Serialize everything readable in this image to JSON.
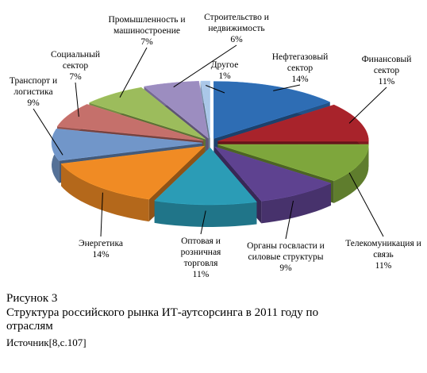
{
  "chart_data": {
    "type": "pie",
    "figure_label": "Рисунок  3",
    "title": "Структура российского рынка ИТ-аутсорсинга в 2011 году по отраслям",
    "source": "Источник[8,с.107]",
    "categories": [
      "Нефтегазовый сектор",
      "Финансовый сектор",
      "Телекомуникация и связь",
      "Органы госвласти и силовые структуры",
      "Оптовая и розничная торговля",
      "Энергетика",
      "Транспорт и логистика",
      "Социальный сектор",
      "Промышленность и машиностроение",
      "Строительство и недвижимость",
      "Другое"
    ],
    "values": [
      14,
      11,
      11,
      9,
      11,
      14,
      9,
      7,
      7,
      6,
      1
    ],
    "value_labels": [
      "14%",
      "11%",
      "11%",
      "9%",
      "11%",
      "14%",
      "9%",
      "7%",
      "7%",
      "6%",
      "1%"
    ],
    "colors": [
      "#2e6db4",
      "#a8232b",
      "#7ea63c",
      "#5e4290",
      "#2b9cb6",
      "#f08b24",
      "#7196c9",
      "#c5706b",
      "#9cbc5c",
      "#9c8dc0",
      "#aac7e8"
    ]
  }
}
